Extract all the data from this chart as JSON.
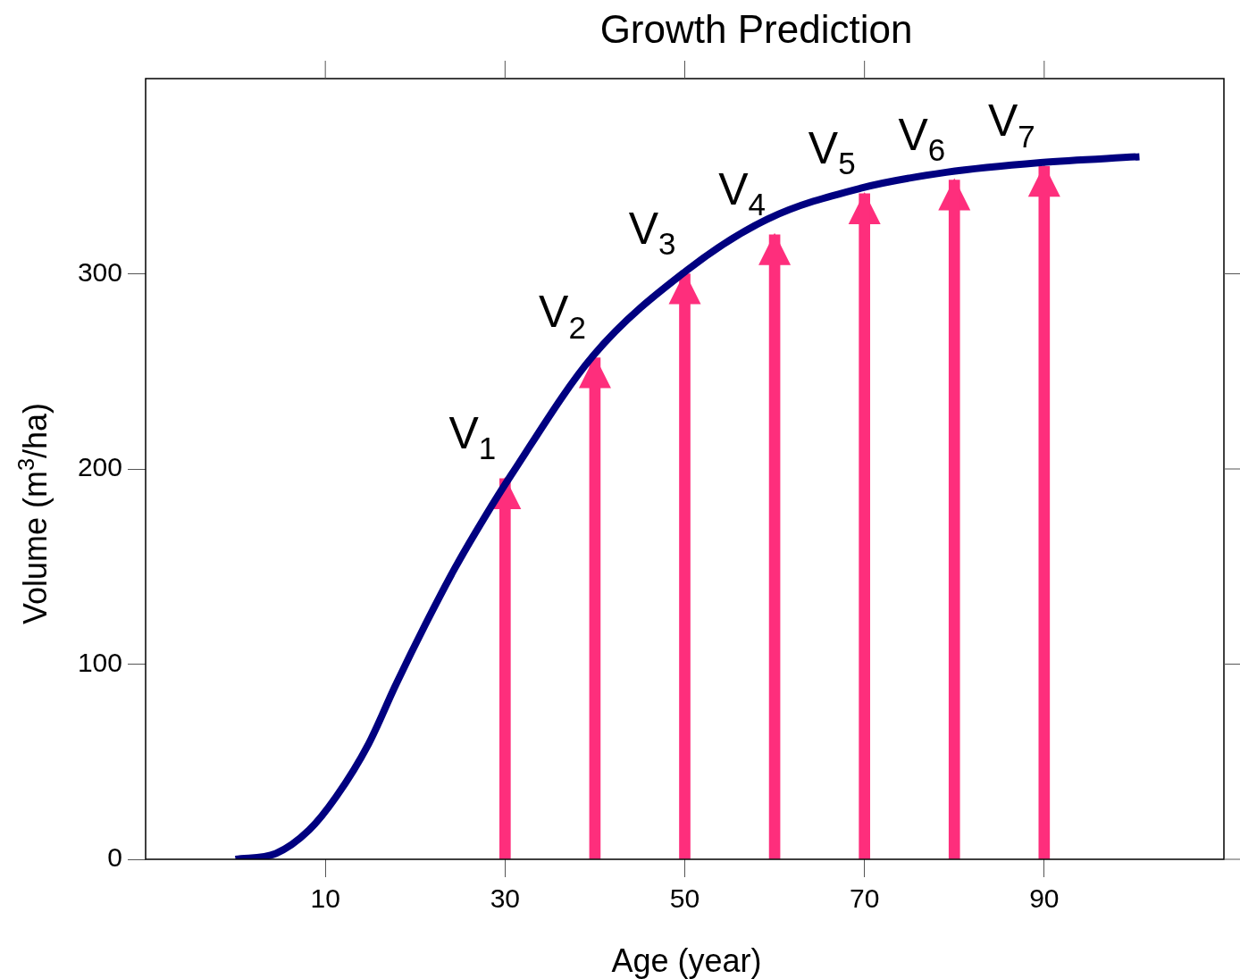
{
  "chart_data": {
    "type": "line",
    "title": "Growth Prediction",
    "xlabel": "Age (year)",
    "ylabel": "Volume (m$^{3}$/ha)",
    "xlim": [
      -10,
      110
    ],
    "xticks": [
      10,
      30,
      50,
      70,
      90
    ],
    "ylim": [
      0,
      400
    ],
    "yticks": [
      0,
      100,
      200,
      300
    ],
    "series": [
      {
        "color": "#000080",
        "x": [
          0,
          4.5,
          8.2,
          11.2,
          14.8,
          17.8,
          21.1,
          24.4,
          27.7,
          30.7,
          39.8,
          50.3,
          59.2,
          69.7,
          79.1,
          89.6,
          100.6
        ],
        "values": [
          0,
          3,
          15,
          32,
          59,
          89,
          120,
          149,
          175,
          197,
          258,
          302,
          328,
          344,
          352,
          357,
          360
        ]
      },
      {
        "type": "bar",
        "color": "#fe2e7c",
        "x": [
          30,
          40,
          50,
          60,
          70,
          80,
          90
        ],
        "values": [
          195,
          257,
          300,
          320,
          341,
          348,
          355
        ]
      }
    ],
    "annotations": [
      {
        "text": "V$_{1}$",
        "x": 30,
        "y": 195
      },
      {
        "text": "V$_{2}$",
        "x": 40,
        "y": 257
      },
      {
        "text": "V$_{3}$",
        "x": 50,
        "y": 300
      },
      {
        "text": "V$_{4}$",
        "x": 60,
        "y": 320
      },
      {
        "text": "V$_{5}$",
        "x": 70,
        "y": 341
      },
      {
        "text": "V$_{6}$",
        "x": 80,
        "y": 348
      },
      {
        "text": "V$_{7}$",
        "x": 90,
        "y": 355
      }
    ]
  }
}
